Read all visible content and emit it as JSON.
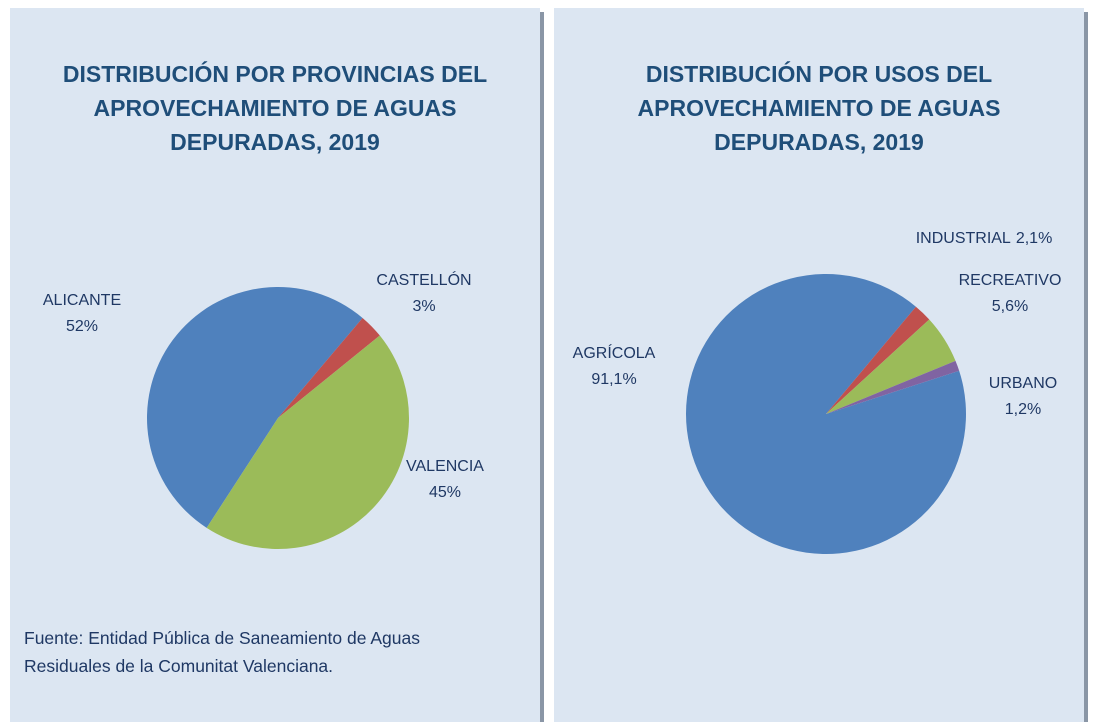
{
  "chart_data": [
    {
      "type": "pie",
      "title": "DISTRIBUCIÓN POR PROVINCIAS DEL APROVECHAMIENTO DE AGUAS DEPURADAS, 2019",
      "categories": [
        "ALICANTE",
        "CASTELLÓN",
        "VALENCIA"
      ],
      "values": [
        52,
        3,
        45
      ],
      "value_labels": [
        "52%",
        "3%",
        "45%"
      ],
      "colors": [
        "#4f81bd",
        "#c0504d",
        "#9bbb59"
      ],
      "source": "Fuente: Entidad Pública de Saneamiento de Aguas Residuales de la Comunitat Valenciana."
    },
    {
      "type": "pie",
      "title": "DISTRIBUCIÓN POR USOS DEL APROVECHAMIENTO DE AGUAS DEPURADAS, 2019",
      "categories": [
        "AGRÍCOLA",
        "INDUSTRIAL",
        "RECREATIVO",
        "URBANO"
      ],
      "values": [
        91.1,
        2.1,
        5.6,
        1.2
      ],
      "value_labels": [
        "91,1%",
        "2,1%",
        "5,6%",
        "1,2%"
      ],
      "colors": [
        "#4f81bd",
        "#c0504d",
        "#9bbb59",
        "#8064a2"
      ]
    }
  ]
}
